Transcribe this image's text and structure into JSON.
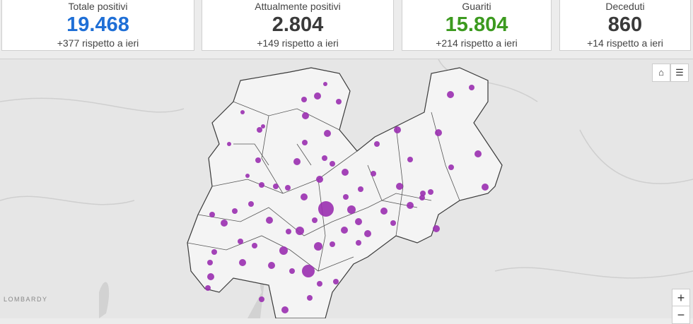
{
  "cards": [
    {
      "title": "Totale positivi",
      "value": "19.468",
      "delta": "+377 rispetto a ieri",
      "color": "#1f6fd6"
    },
    {
      "title": "Attualmente positivi",
      "value": "2.804",
      "delta": "+149 rispetto a ieri",
      "color": "#3a3a3a"
    },
    {
      "title": "Guariti",
      "value": "15.804",
      "delta": "+214 rispetto a ieri",
      "color": "#3c9a1f"
    },
    {
      "title": "Deceduti",
      "value": "860",
      "delta": "+14 rispetto a ieri",
      "color": "#3a3a3a"
    }
  ],
  "map": {
    "region_label": "LOMBARDY",
    "zoom_in": "+",
    "zoom_out": "−"
  }
}
